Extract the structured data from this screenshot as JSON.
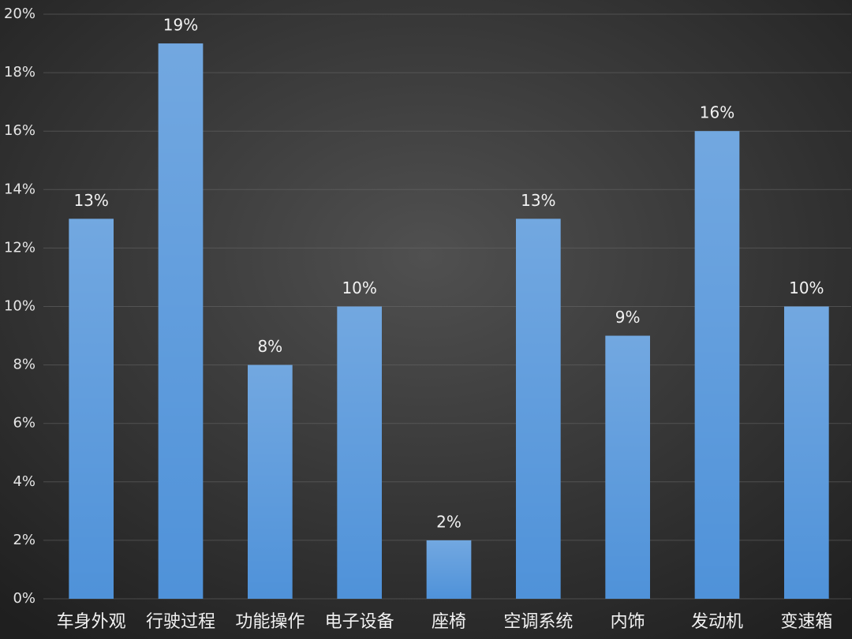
{
  "chart_data": {
    "type": "bar",
    "categories": [
      "车身外观",
      "行驶过程",
      "功能操作",
      "电子设备",
      "座椅",
      "空调系统",
      "内饰",
      "发动机",
      "变速箱"
    ],
    "values": [
      13,
      19,
      8,
      10,
      2,
      13,
      9,
      16,
      10
    ],
    "value_labels": [
      "13%",
      "19%",
      "8%",
      "10%",
      "2%",
      "13%",
      "9%",
      "16%",
      "10%"
    ],
    "color": "#4f92d9",
    "ylim": [
      0,
      20
    ],
    "yticks": [
      {
        "value": 0,
        "label": "0%"
      },
      {
        "value": 2,
        "label": "2%"
      },
      {
        "value": 4,
        "label": "4%"
      },
      {
        "value": 6,
        "label": "6%"
      },
      {
        "value": 8,
        "label": "8%"
      },
      {
        "value": 10,
        "label": "10%"
      },
      {
        "value": 12,
        "label": "12%"
      },
      {
        "value": 14,
        "label": "14%"
      },
      {
        "value": 16,
        "label": "16%"
      },
      {
        "value": 18,
        "label": "18%"
      },
      {
        "value": 20,
        "label": "20%"
      }
    ],
    "grid": true
  }
}
